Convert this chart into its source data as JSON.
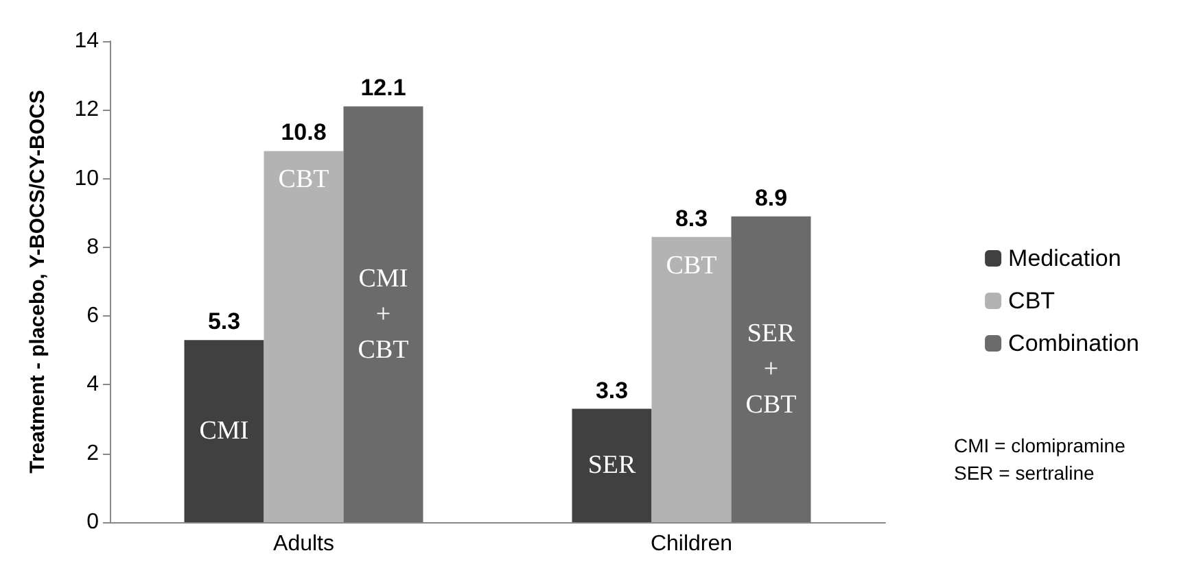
{
  "chart_data": {
    "type": "bar",
    "ylabel": "Treatment - placebo, Y-BOCS/CY-BOCS",
    "categories": [
      "Adults",
      "Children"
    ],
    "series": [
      {
        "name": "Medication",
        "color": "#404040",
        "values": [
          5.3,
          3.3
        ]
      },
      {
        "name": "CBT",
        "color": "#b3b3b3",
        "values": [
          10.8,
          8.3
        ]
      },
      {
        "name": "Combination",
        "color": "#6b6b6b",
        "values": [
          12.1,
          8.9
        ]
      }
    ],
    "ylim": [
      0,
      14
    ],
    "yticks": [
      0,
      2,
      4,
      6,
      8,
      10,
      12,
      14
    ],
    "grid": false,
    "legend": "right",
    "data_labels": true,
    "annotations": [
      "CMI",
      "CBT",
      "CMI + CBT",
      "SER",
      "CBT",
      "SER + CBT",
      "CMI = clomipramine",
      "SER = sertraline"
    ]
  }
}
